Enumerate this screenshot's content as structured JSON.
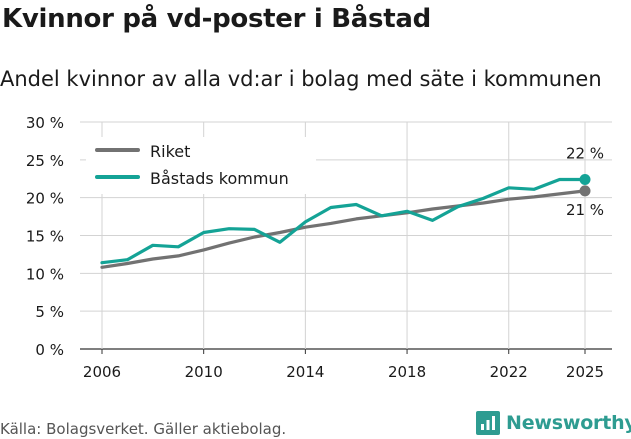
{
  "title": "Kvinnor på vd-poster i Båstad",
  "subtitle": "Andel kvinnor av alla vd:ar i bolag med säte i kommunen",
  "source": "Källa: Bolagsverket. Gäller aktiebolag.",
  "brand": {
    "name": "Newsworthy",
    "icon": "newsworthy-logo-icon"
  },
  "colors": {
    "riket": "#727272",
    "bastad": "#14a396",
    "grid": "#d3d3d3",
    "text": "#1a1a1a"
  },
  "chart_data": {
    "type": "line",
    "title": "Kvinnor på vd-poster i Båstad",
    "subtitle": "Andel kvinnor av alla vd:ar i bolag med säte i kommunen",
    "xlabel": "",
    "ylabel": "",
    "ylim": [
      0,
      30
    ],
    "y_ticks": [
      0,
      5,
      10,
      15,
      20,
      25,
      30
    ],
    "y_tick_labels": [
      "0 %",
      "5 %",
      "10 %",
      "15 %",
      "20 %",
      "25 %",
      "30 %"
    ],
    "xlim": [
      2006,
      2025
    ],
    "x_ticks": [
      2006,
      2010,
      2014,
      2018,
      2022,
      2025
    ],
    "x_tick_labels": [
      "2006",
      "2010",
      "2014",
      "2018",
      "2022",
      "2025"
    ],
    "grid": true,
    "legend_position": "top-left",
    "x": [
      2006,
      2007,
      2008,
      2009,
      2010,
      2011,
      2012,
      2013,
      2014,
      2015,
      2016,
      2017,
      2018,
      2019,
      2020,
      2021,
      2022,
      2023,
      2024,
      2025
    ],
    "series": [
      {
        "name": "Riket",
        "color": "#727272",
        "values": [
          10.8,
          11.3,
          11.9,
          12.3,
          13.1,
          14.0,
          14.8,
          15.4,
          16.1,
          16.6,
          17.2,
          17.6,
          18.0,
          18.5,
          18.9,
          19.3,
          19.8,
          20.1,
          20.5,
          20.9
        ],
        "end_label": "21 %"
      },
      {
        "name": "Båstads kommun",
        "color": "#14a396",
        "values": [
          11.4,
          11.8,
          13.7,
          13.5,
          15.4,
          15.9,
          15.8,
          14.1,
          16.8,
          18.7,
          19.1,
          17.6,
          18.2,
          17.0,
          18.8,
          19.9,
          21.3,
          21.1,
          22.4,
          22.4
        ],
        "end_label": "22 %"
      }
    ]
  }
}
